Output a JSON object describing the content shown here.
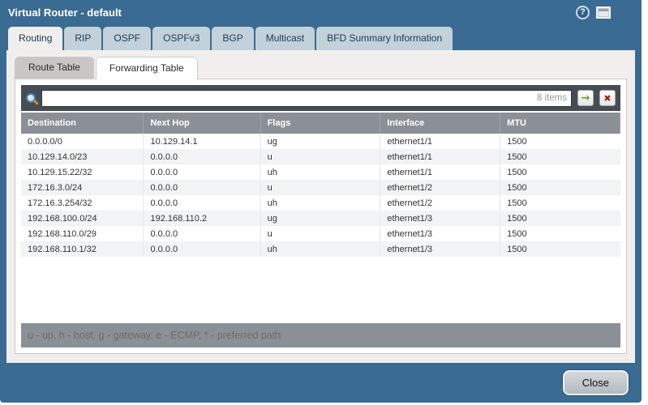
{
  "window": {
    "title": "Virtual Router - default"
  },
  "titlebar": {
    "help_glyph": "?"
  },
  "tabs": [
    {
      "label": "Routing",
      "active": true
    },
    {
      "label": "RIP"
    },
    {
      "label": "OSPF"
    },
    {
      "label": "OSPFv3"
    },
    {
      "label": "BGP"
    },
    {
      "label": "Multicast"
    },
    {
      "label": "BFD Summary Information"
    }
  ],
  "subtabs": [
    {
      "label": "Route Table"
    },
    {
      "label": "Forwarding Table",
      "active": true
    }
  ],
  "search": {
    "value": "",
    "count_label": "8 items",
    "apply_glyph": "→",
    "clear_glyph": "✖"
  },
  "table": {
    "columns": [
      "Destination",
      "Next Hop",
      "Flags",
      "Interface",
      "MTU"
    ],
    "rows": [
      [
        "0.0.0.0/0",
        "10.129.14.1",
        "ug",
        "ethernet1/1",
        "1500"
      ],
      [
        "10.129.14.0/23",
        "0.0.0.0",
        "u",
        "ethernet1/1",
        "1500"
      ],
      [
        "10.129.15.22/32",
        "0.0.0.0",
        "uh",
        "ethernet1/1",
        "1500"
      ],
      [
        "172.16.3.0/24",
        "0.0.0.0",
        "u",
        "ethernet1/2",
        "1500"
      ],
      [
        "172.16.3.254/32",
        "0.0.0.0",
        "uh",
        "ethernet1/2",
        "1500"
      ],
      [
        "192.168.100.0/24",
        "192.168.110.2",
        "ug",
        "ethernet1/3",
        "1500"
      ],
      [
        "192.168.110.0/29",
        "0.0.0.0",
        "u",
        "ethernet1/3",
        "1500"
      ],
      [
        "192.168.110.1/32",
        "0.0.0.0",
        "uh",
        "ethernet1/3",
        "1500"
      ]
    ]
  },
  "legend": "u - up, h - host, g - gateway, e - ECMP, * - preferred path",
  "footer": {
    "close_label": "Close"
  },
  "colors": {
    "titlebar_blue": "#3a6b92",
    "tab_inactive": "#c2d1da",
    "tab_active": "#f0efed",
    "search_band": "#454c54",
    "table_header_gray": "#8a9096",
    "row_alt": "#f2f3f5",
    "apply_green": "#7b9c1f",
    "clear_red": "#9c1f10"
  }
}
